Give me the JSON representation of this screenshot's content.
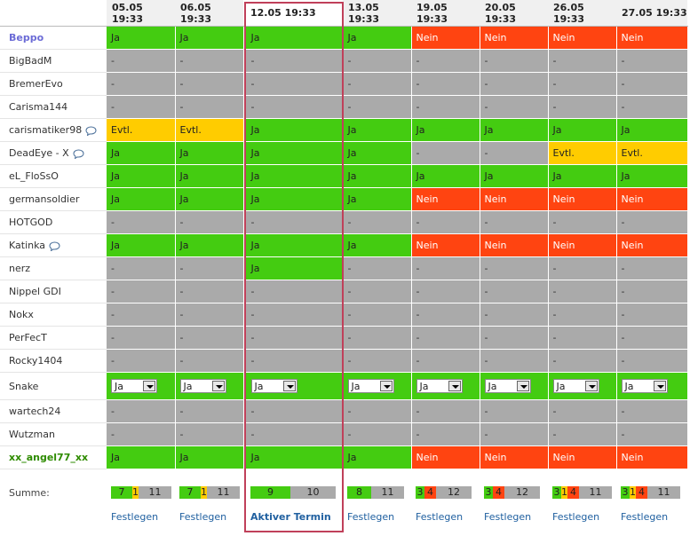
{
  "dates": [
    "05.05 19:33",
    "06.05 19:33",
    "12.05 19:33",
    "13.05 19:33",
    "19.05 19:33",
    "20.05 19:33",
    "26.05 19:33",
    "27.05 19:33"
  ],
  "rows": [
    {
      "name": "Beppo",
      "style": "me",
      "comment": false,
      "values": [
        "Ja",
        "Ja",
        "Ja",
        "Ja",
        "Nein",
        "Nein",
        "Nein",
        "Nein"
      ]
    },
    {
      "name": "BigBadM",
      "style": "",
      "comment": false,
      "values": [
        "-",
        "-",
        "-",
        "-",
        "-",
        "-",
        "-",
        "-"
      ]
    },
    {
      "name": "BremerEvo",
      "style": "",
      "comment": false,
      "values": [
        "-",
        "-",
        "-",
        "-",
        "-",
        "-",
        "-",
        "-"
      ]
    },
    {
      "name": "Carisma144",
      "style": "",
      "comment": false,
      "values": [
        "-",
        "-",
        "-",
        "-",
        "-",
        "-",
        "-",
        "-"
      ]
    },
    {
      "name": "carismatiker98",
      "style": "",
      "comment": true,
      "values": [
        "Evtl.",
        "Evtl.",
        "Ja",
        "Ja",
        "Ja",
        "Ja",
        "Ja",
        "Ja"
      ]
    },
    {
      "name": "DeadEye - X",
      "style": "",
      "comment": true,
      "values": [
        "Ja",
        "Ja",
        "Ja",
        "Ja",
        "-",
        "-",
        "Evtl.",
        "Evtl."
      ]
    },
    {
      "name": "eL_FloSsO",
      "style": "",
      "comment": false,
      "values": [
        "Ja",
        "Ja",
        "Ja",
        "Ja",
        "Ja",
        "Ja",
        "Ja",
        "Ja"
      ]
    },
    {
      "name": "germansoldier",
      "style": "",
      "comment": false,
      "values": [
        "Ja",
        "Ja",
        "Ja",
        "Ja",
        "Nein",
        "Nein",
        "Nein",
        "Nein"
      ]
    },
    {
      "name": "HOTGOD",
      "style": "",
      "comment": false,
      "values": [
        "-",
        "-",
        "-",
        "-",
        "-",
        "-",
        "-",
        "-"
      ]
    },
    {
      "name": "Katinka",
      "style": "",
      "comment": true,
      "values": [
        "Ja",
        "Ja",
        "Ja",
        "Ja",
        "Nein",
        "Nein",
        "Nein",
        "Nein"
      ]
    },
    {
      "name": "nerz",
      "style": "",
      "comment": false,
      "values": [
        "-",
        "-",
        "Ja",
        "-",
        "-",
        "-",
        "-",
        "-"
      ]
    },
    {
      "name": "Nippel GDI",
      "style": "",
      "comment": false,
      "values": [
        "-",
        "-",
        "-",
        "-",
        "-",
        "-",
        "-",
        "-"
      ]
    },
    {
      "name": "Nokx",
      "style": "",
      "comment": false,
      "values": [
        "-",
        "-",
        "-",
        "-",
        "-",
        "-",
        "-",
        "-"
      ]
    },
    {
      "name": "PerFecT",
      "style": "",
      "comment": false,
      "values": [
        "-",
        "-",
        "-",
        "-",
        "-",
        "-",
        "-",
        "-"
      ]
    },
    {
      "name": "Rocky1404",
      "style": "",
      "comment": false,
      "values": [
        "-",
        "-",
        "-",
        "-",
        "-",
        "-",
        "-",
        "-"
      ]
    },
    {
      "name": "Snake",
      "style": "",
      "comment": false,
      "select": true,
      "values": [
        "Ja",
        "Ja",
        "Ja",
        "Ja",
        "Ja",
        "Ja",
        "Ja",
        "Ja"
      ]
    },
    {
      "name": "wartech24",
      "style": "",
      "comment": false,
      "values": [
        "-",
        "-",
        "-",
        "-",
        "-",
        "-",
        "-",
        "-"
      ]
    },
    {
      "name": "Wutzman",
      "style": "",
      "comment": false,
      "values": [
        "-",
        "-",
        "-",
        "-",
        "-",
        "-",
        "-",
        "-"
      ]
    },
    {
      "name": "xx_angel77_xx",
      "style": "green",
      "comment": false,
      "values": [
        "Ja",
        "Ja",
        "Ja",
        "Ja",
        "Nein",
        "Nein",
        "Nein",
        "Nein"
      ]
    }
  ],
  "summary_label": "Summe:",
  "sums": [
    {
      "ja": "7",
      "evtl": "1",
      "nein": "",
      "none": "11"
    },
    {
      "ja": "7",
      "evtl": "1",
      "nein": "",
      "none": "11"
    },
    {
      "ja": "9",
      "evtl": "",
      "nein": "",
      "none": "10"
    },
    {
      "ja": "8",
      "evtl": "",
      "nein": "",
      "none": "11"
    },
    {
      "ja": "3",
      "evtl": "",
      "nein": "4",
      "none": "12"
    },
    {
      "ja": "3",
      "evtl": "",
      "nein": "4",
      "none": "12"
    },
    {
      "ja": "3",
      "evtl": "1",
      "nein": "4",
      "none": "11"
    },
    {
      "ja": "3",
      "evtl": "1",
      "nein": "4",
      "none": "11"
    }
  ],
  "links": [
    "Festlegen",
    "Festlegen",
    "Aktiver Termin",
    "Festlegen",
    "Festlegen",
    "Festlegen",
    "Festlegen",
    "Festlegen"
  ],
  "active_index": 2,
  "colors": {
    "ja": "#44cc11",
    "nein": "#ff4411",
    "evtl": "#ffcc00",
    "none": "#aaaaaa",
    "active_border": "#c0405a"
  }
}
